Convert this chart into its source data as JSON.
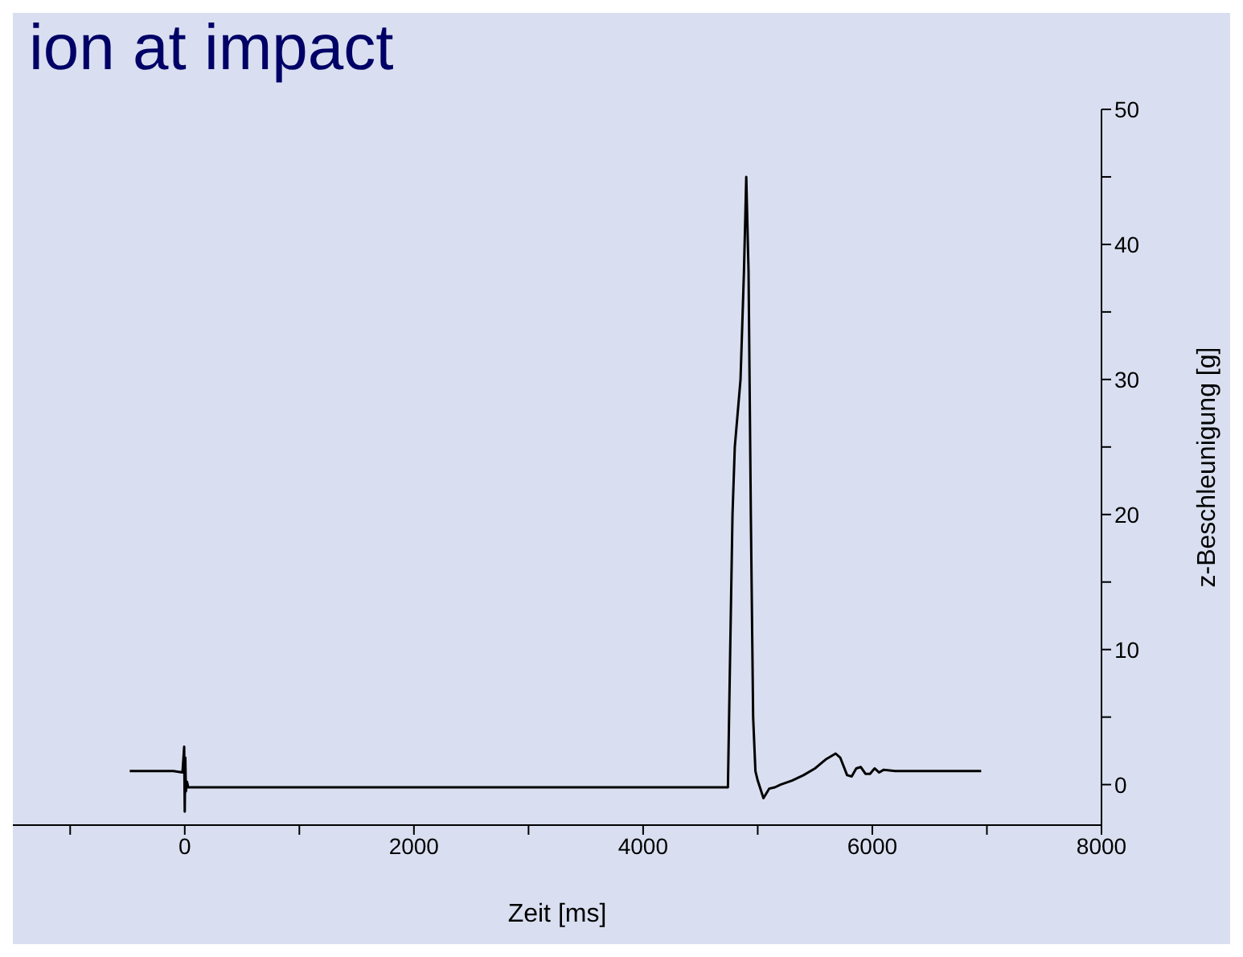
{
  "chart_data": {
    "type": "line",
    "title": "ion at impact",
    "xlabel": "Zeit [ms]",
    "ylabel": "z-Beschleunigung [g]",
    "x": [
      -480,
      -300,
      -100,
      -20,
      -5,
      0,
      5,
      10,
      20,
      30,
      100,
      1000,
      2000,
      3000,
      4000,
      4700,
      4740,
      4760,
      4780,
      4800,
      4850,
      4880,
      4900,
      4920,
      4940,
      4960,
      4980,
      5000,
      5050,
      5100,
      5150,
      5200,
      5300,
      5400,
      5500,
      5600,
      5680,
      5720,
      5780,
      5820,
      5860,
      5900,
      5940,
      5980,
      6020,
      6060,
      6100,
      6200,
      6400,
      6600,
      6800,
      6950
    ],
    "series": [
      {
        "color": "#000000",
        "values": [
          1.0,
          1.0,
          1.0,
          0.9,
          2.8,
          -2.0,
          2.0,
          -0.5,
          0.2,
          -0.2,
          -0.2,
          -0.2,
          -0.2,
          -0.2,
          -0.2,
          -0.2,
          -0.2,
          10,
          20,
          25,
          30,
          38,
          45,
          38,
          20,
          5,
          1.0,
          0.3,
          -1.0,
          -0.3,
          -0.2,
          0.0,
          0.3,
          0.7,
          1.2,
          1.9,
          2.3,
          2.0,
          0.7,
          0.6,
          1.2,
          1.3,
          0.8,
          0.8,
          1.2,
          0.9,
          1.1,
          1.0,
          1.0,
          1.0,
          1.0,
          1.0
        ]
      }
    ],
    "xlim": [
      -1500,
      8000
    ],
    "xticks": [
      {
        "value": -1000,
        "label": null
      },
      0,
      {
        "value": 1000,
        "label": null
      },
      2000,
      {
        "value": 3000,
        "label": null
      },
      4000,
      {
        "value": 5000,
        "label": null
      },
      6000,
      {
        "value": 7000,
        "label": null
      },
      8000
    ],
    "ylim": [
      -3,
      50
    ],
    "yticks": [
      0,
      {
        "value": 5,
        "label": null
      },
      10,
      {
        "value": 15,
        "label": null
      },
      20,
      {
        "value": 25,
        "label": null
      },
      30,
      {
        "value": 35,
        "label": null
      },
      40,
      {
        "value": 45,
        "label": null
      },
      50
    ],
    "grid": false,
    "legend": false,
    "marker": "none",
    "line_style": "solid"
  }
}
